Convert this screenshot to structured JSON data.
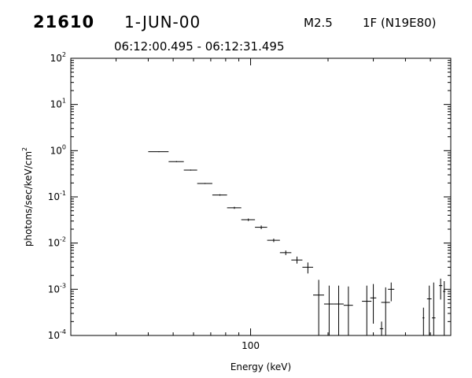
{
  "header": {
    "event_id": "21610",
    "date": "1-JUN-00",
    "flare_class": "M2.5",
    "flare_location": "1F (N19E80)",
    "time_range": "06:12:00.495 - 06:12:31.495"
  },
  "chart_data": {
    "type": "scatter",
    "title": "",
    "xlabel": "Energy (keV)",
    "ylabel": "photons/sec/keV/cm^2",
    "x_scale": "log",
    "y_scale": "log",
    "xlim": [
      20,
      600
    ],
    "ylim": [
      0.0001,
      100
    ],
    "x_tick_labels": [
      {
        "value": 100,
        "label": "100"
      }
    ],
    "y_tick_labels": [
      {
        "value": 100,
        "base": "10",
        "exp": "2"
      },
      {
        "value": 10,
        "base": "10",
        "exp": "1"
      },
      {
        "value": 1,
        "base": "10",
        "exp": "0"
      },
      {
        "value": 0.1,
        "base": "10",
        "exp": "-1"
      },
      {
        "value": 0.01,
        "base": "10",
        "exp": "-2"
      },
      {
        "value": 0.001,
        "base": "10",
        "exp": "-3"
      },
      {
        "value": 0.0001,
        "base": "10",
        "exp": "-4"
      }
    ],
    "grid": false,
    "legend": "none",
    "series": [
      {
        "points": [
          {
            "x": 44,
            "xlo": 40,
            "xhi": 48,
            "y": 0.95,
            "ylo": 0.93,
            "yhi": 0.97
          },
          {
            "x": 51.5,
            "xlo": 48,
            "xhi": 55,
            "y": 0.58,
            "ylo": 0.565,
            "yhi": 0.595
          },
          {
            "x": 58.5,
            "xlo": 55,
            "xhi": 62,
            "y": 0.38,
            "ylo": 0.37,
            "yhi": 0.39
          },
          {
            "x": 66.5,
            "xlo": 62,
            "xhi": 71,
            "y": 0.195,
            "ylo": 0.19,
            "yhi": 0.2
          },
          {
            "x": 76,
            "xlo": 71,
            "xhi": 81,
            "y": 0.11,
            "ylo": 0.106,
            "yhi": 0.114
          },
          {
            "x": 86.5,
            "xlo": 81,
            "xhi": 92,
            "y": 0.058,
            "ylo": 0.055,
            "yhi": 0.061
          },
          {
            "x": 98,
            "xlo": 92,
            "xhi": 104,
            "y": 0.032,
            "ylo": 0.03,
            "yhi": 0.034
          },
          {
            "x": 110,
            "xlo": 104,
            "xhi": 116,
            "y": 0.022,
            "ylo": 0.02,
            "yhi": 0.024
          },
          {
            "x": 123,
            "xlo": 116,
            "xhi": 130,
            "y": 0.0115,
            "ylo": 0.0105,
            "yhi": 0.0125
          },
          {
            "x": 137,
            "xlo": 130,
            "xhi": 144,
            "y": 0.0062,
            "ylo": 0.0055,
            "yhi": 0.0069
          },
          {
            "x": 151.5,
            "xlo": 144,
            "xhi": 159,
            "y": 0.0043,
            "ylo": 0.0036,
            "yhi": 0.0051
          },
          {
            "x": 167,
            "xlo": 159,
            "xhi": 175,
            "y": 0.003,
            "ylo": 0.0022,
            "yhi": 0.0038
          },
          {
            "x": 184,
            "xlo": 175,
            "xhi": 193,
            "y": 0.00075,
            "ylo": 0.0001,
            "yhi": 0.0016
          },
          {
            "x": 202,
            "xlo": 193,
            "xhi": 211,
            "y": 0.00048,
            "ylo": 0.0001,
            "yhi": 0.0012
          },
          {
            "x": 220,
            "xlo": 211,
            "xhi": 230,
            "y": 0.00048,
            "ylo": 0.0001,
            "yhi": 0.0012
          },
          {
            "x": 240,
            "xlo": 230,
            "xhi": 250,
            "y": 0.00045,
            "ylo": 0.0001,
            "yhi": 0.00115
          },
          {
            "x": 283,
            "xlo": 271,
            "xhi": 295,
            "y": 0.00055,
            "ylo": 0.0001,
            "yhi": 0.0012
          },
          {
            "x": 300,
            "xlo": 292,
            "xhi": 308,
            "y": 0.00065,
            "ylo": 0.00018,
            "yhi": 0.0013
          },
          {
            "x": 323,
            "xlo": 318,
            "xhi": 328,
            "y": 0.00014,
            "ylo": 0.0001,
            "yhi": 0.0002
          },
          {
            "x": 335,
            "xlo": 322,
            "xhi": 348,
            "y": 0.00052,
            "ylo": 0.0001,
            "yhi": 0.0011
          },
          {
            "x": 352,
            "xlo": 342,
            "xhi": 362,
            "y": 0.001,
            "ylo": 0.00055,
            "yhi": 0.0014
          },
          {
            "x": 470,
            "xlo": 466,
            "xhi": 474,
            "y": 0.00024,
            "ylo": 0.0001,
            "yhi": 0.0004
          },
          {
            "x": 495,
            "xlo": 485,
            "xhi": 505,
            "y": 0.00062,
            "ylo": 0.0001,
            "yhi": 0.0012
          },
          {
            "x": 515,
            "xlo": 507,
            "xhi": 523,
            "y": 0.00024,
            "ylo": 0.0001,
            "yhi": 0.0014
          },
          {
            "x": 548,
            "xlo": 540,
            "xhi": 556,
            "y": 0.0012,
            "ylo": 0.0006,
            "yhi": 0.0017
          },
          {
            "x": 566,
            "xlo": 560,
            "xhi": 572,
            "y": 0.0009,
            "ylo": 0.0001,
            "yhi": 0.0015
          }
        ]
      }
    ]
  }
}
